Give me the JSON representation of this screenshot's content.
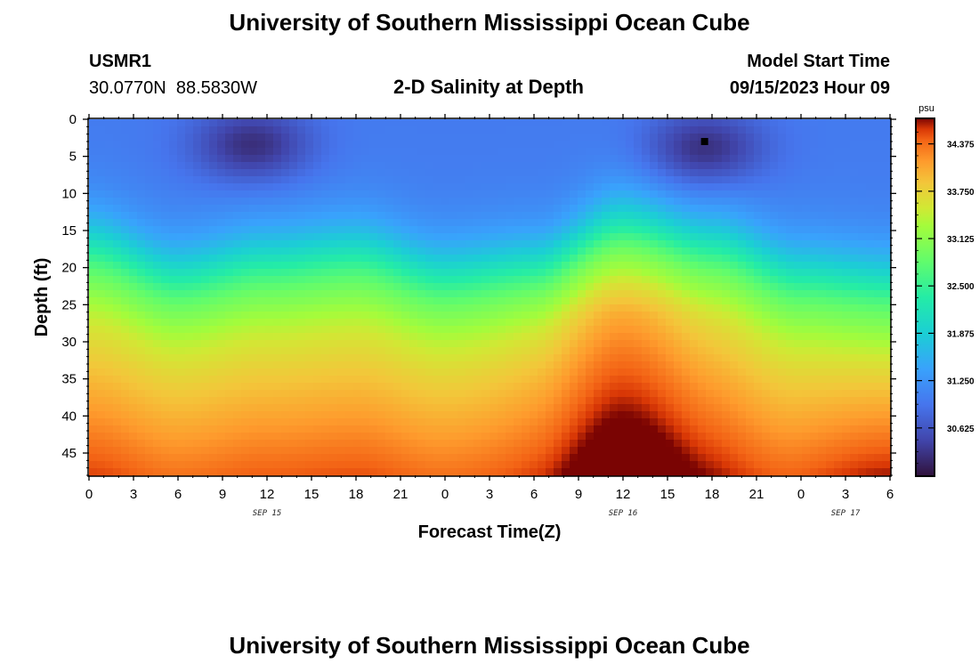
{
  "header": {
    "title": "University of Southern Mississippi Ocean Cube",
    "station_id": "USMR1",
    "coordinates": "30.0770N  88.5830W",
    "chart_title": "2-D Salinity at Depth",
    "model_start_label": "Model Start Time",
    "model_start_value": "09/15/2023 Hour 09"
  },
  "footer": {
    "title": "University of Southern Mississippi Ocean Cube"
  },
  "chart_data": {
    "type": "heatmap",
    "title": "2-D Salinity at Depth",
    "xlabel": "Forecast Time(Z)",
    "ylabel": "Depth (ft)",
    "x_hours_range": [
      0,
      54
    ],
    "y_range": [
      0,
      48
    ],
    "x_tick_labels": [
      "0",
      "3",
      "6",
      "9",
      "12",
      "15",
      "18",
      "21",
      "0",
      "3",
      "6",
      "9",
      "12",
      "15",
      "18",
      "21",
      "0",
      "3",
      "6"
    ],
    "x_tick_hours": [
      0,
      3,
      6,
      9,
      12,
      15,
      18,
      21,
      24,
      27,
      30,
      33,
      36,
      39,
      42,
      45,
      48,
      51,
      54
    ],
    "date_labels": [
      {
        "label": "SEP 15",
        "hour": 12
      },
      {
        "label": "SEP 16",
        "hour": 36
      },
      {
        "label": "SEP 17",
        "hour": 51
      }
    ],
    "y_ticks": [
      0,
      5,
      10,
      15,
      20,
      25,
      30,
      35,
      40,
      45
    ],
    "colorbar": {
      "unit": "psu",
      "min": 30.0,
      "max": 34.7,
      "ticks": [
        "34.375",
        "33.750",
        "33.125",
        "32.500",
        "31.875",
        "31.250",
        "30.625"
      ]
    },
    "marker": {
      "hour": 41.5,
      "depth": 3
    },
    "halocline_depth_by_hour": [
      {
        "hour": 0,
        "depth": 17
      },
      {
        "hour": 6,
        "depth": 21
      },
      {
        "hour": 12,
        "depth": 19
      },
      {
        "hour": 18,
        "depth": 18
      },
      {
        "hour": 24,
        "depth": 21
      },
      {
        "hour": 30,
        "depth": 20
      },
      {
        "hour": 36,
        "depth": 14
      },
      {
        "hour": 42,
        "depth": 17
      },
      {
        "hour": 48,
        "depth": 21
      },
      {
        "hour": 54,
        "depth": 22
      }
    ],
    "surface_minima": [
      {
        "hour": 11,
        "depth": 3.5
      },
      {
        "hour": 41.5,
        "depth": 4
      }
    ]
  }
}
